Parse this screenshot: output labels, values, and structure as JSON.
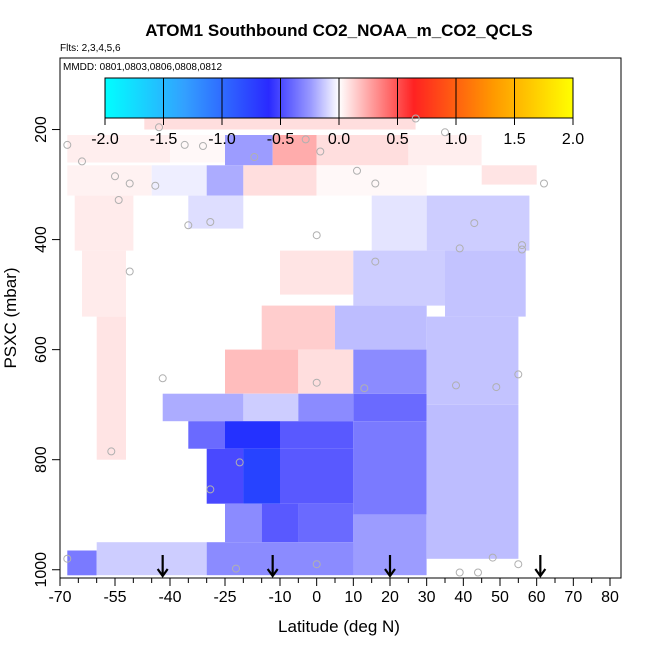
{
  "chart_data": {
    "type": "heatmap",
    "title": "ATOM1 Southbound CO2_NOAA_m_CO2_QCLS",
    "flights_note": "Flts: 2,3,4,5,6",
    "dates_note": "MMDD: 0801,0803,0806,0808,0812",
    "xlabel": "Latitude (deg N)",
    "ylabel": "PSXC (mbar)",
    "xlim": [
      -70,
      83
    ],
    "ylim": [
      1015,
      70
    ],
    "x_ticks": [
      -70,
      -55,
      -40,
      -25,
      -10,
      0,
      10,
      20,
      30,
      40,
      50,
      60,
      70,
      80
    ],
    "x_tick_labels": [
      "-70",
      "-55",
      "-40",
      "-25",
      "-10",
      "0",
      "10",
      "20",
      "30",
      "40",
      "50",
      "60",
      "70",
      "80"
    ],
    "x_minor_ticks": [
      -65,
      -60,
      -50,
      -45,
      -35,
      -30,
      -20,
      -15,
      -5,
      5,
      15,
      25,
      35,
      45,
      55,
      65,
      75
    ],
    "y_ticks": [
      200,
      400,
      600,
      800,
      1000
    ],
    "y_tick_labels": [
      "200",
      "400",
      "600",
      "800",
      "1000"
    ],
    "colorbar": {
      "ticks": [
        -2.0,
        -1.5,
        -1.0,
        -0.5,
        0.0,
        0.5,
        1.0,
        1.5,
        2.0
      ],
      "tick_labels": [
        "-2.0",
        "-1.5",
        "-1.0",
        "-0.5",
        "0.0",
        "0.5",
        "1.0",
        "1.5",
        "2.0"
      ],
      "range": [
        -2.0,
        2.0
      ],
      "colors": [
        "#00ffff",
        "#3399ff",
        "#2222ff",
        "#ffffff",
        "#ff2222",
        "#ff9900",
        "#ffff00"
      ]
    },
    "cells": [
      {
        "x": [
          -47,
          27
        ],
        "p": [
          160,
          200
        ],
        "v": 0.1
      },
      {
        "x": [
          -68,
          -40
        ],
        "p": [
          210,
          260
        ],
        "v": 0.05
      },
      {
        "x": [
          -40,
          -25
        ],
        "p": [
          210,
          260
        ],
        "v": 0.02
      },
      {
        "x": [
          -25,
          -12
        ],
        "p": [
          210,
          265
        ],
        "v": -0.3
      },
      {
        "x": [
          -12,
          0
        ],
        "p": [
          210,
          265
        ],
        "v": 0.25
      },
      {
        "x": [
          0,
          25
        ],
        "p": [
          210,
          265
        ],
        "v": 0.1
      },
      {
        "x": [
          25,
          45
        ],
        "p": [
          210,
          265
        ],
        "v": 0.05
      },
      {
        "x": [
          -68,
          -45
        ],
        "p": [
          265,
          320
        ],
        "v": 0.04
      },
      {
        "x": [
          -45,
          -30
        ],
        "p": [
          265,
          320
        ],
        "v": -0.05
      },
      {
        "x": [
          -30,
          -20
        ],
        "p": [
          265,
          320
        ],
        "v": -0.25
      },
      {
        "x": [
          -20,
          0
        ],
        "p": [
          265,
          320
        ],
        "v": 0.1
      },
      {
        "x": [
          0,
          30
        ],
        "p": [
          265,
          320
        ],
        "v": 0.02
      },
      {
        "x": [
          45,
          60
        ],
        "p": [
          265,
          300
        ],
        "v": 0.08
      },
      {
        "x": [
          -66,
          -50
        ],
        "p": [
          320,
          420
        ],
        "v": 0.06
      },
      {
        "x": [
          -35,
          -20
        ],
        "p": [
          320,
          380
        ],
        "v": -0.1
      },
      {
        "x": [
          15,
          30
        ],
        "p": [
          320,
          420
        ],
        "v": -0.08
      },
      {
        "x": [
          30,
          58
        ],
        "p": [
          320,
          420
        ],
        "v": -0.15
      },
      {
        "x": [
          -64,
          -52
        ],
        "p": [
          420,
          540
        ],
        "v": 0.06
      },
      {
        "x": [
          -10,
          10
        ],
        "p": [
          420,
          500
        ],
        "v": 0.08
      },
      {
        "x": [
          10,
          35
        ],
        "p": [
          420,
          520
        ],
        "v": -0.15
      },
      {
        "x": [
          35,
          57
        ],
        "p": [
          420,
          540
        ],
        "v": -0.18
      },
      {
        "x": [
          -60,
          -52
        ],
        "p": [
          540,
          800
        ],
        "v": 0.08
      },
      {
        "x": [
          -15,
          5
        ],
        "p": [
          520,
          600
        ],
        "v": 0.15
      },
      {
        "x": [
          5,
          30
        ],
        "p": [
          520,
          600
        ],
        "v": -0.2
      },
      {
        "x": [
          30,
          55
        ],
        "p": [
          540,
          700
        ],
        "v": -0.18
      },
      {
        "x": [
          -25,
          -5
        ],
        "p": [
          600,
          680
        ],
        "v": 0.2
      },
      {
        "x": [
          -5,
          10
        ],
        "p": [
          600,
          680
        ],
        "v": 0.1
      },
      {
        "x": [
          10,
          30
        ],
        "p": [
          600,
          680
        ],
        "v": -0.35
      },
      {
        "x": [
          30,
          55
        ],
        "p": [
          700,
          980
        ],
        "v": -0.2
      },
      {
        "x": [
          -42,
          -20
        ],
        "p": [
          680,
          730
        ],
        "v": -0.25
      },
      {
        "x": [
          -20,
          -5
        ],
        "p": [
          680,
          730
        ],
        "v": -0.15
      },
      {
        "x": [
          -5,
          10
        ],
        "p": [
          680,
          730
        ],
        "v": -0.35
      },
      {
        "x": [
          10,
          30
        ],
        "p": [
          680,
          730
        ],
        "v": -0.45
      },
      {
        "x": [
          -35,
          -25
        ],
        "p": [
          730,
          780
        ],
        "v": -0.45
      },
      {
        "x": [
          -25,
          -10
        ],
        "p": [
          730,
          780
        ],
        "v": -0.75
      },
      {
        "x": [
          -10,
          10
        ],
        "p": [
          730,
          780
        ],
        "v": -0.5
      },
      {
        "x": [
          10,
          30
        ],
        "p": [
          730,
          900
        ],
        "v": -0.4
      },
      {
        "x": [
          -30,
          -20
        ],
        "p": [
          780,
          880
        ],
        "v": -0.55
      },
      {
        "x": [
          -20,
          -10
        ],
        "p": [
          780,
          880
        ],
        "v": -0.85
      },
      {
        "x": [
          -10,
          10
        ],
        "p": [
          780,
          880
        ],
        "v": -0.5
      },
      {
        "x": [
          -25,
          -15
        ],
        "p": [
          880,
          950
        ],
        "v": -0.35
      },
      {
        "x": [
          -15,
          -5
        ],
        "p": [
          880,
          950
        ],
        "v": -0.5
      },
      {
        "x": [
          -5,
          10
        ],
        "p": [
          880,
          950
        ],
        "v": -0.45
      },
      {
        "x": [
          10,
          30
        ],
        "p": [
          900,
          1010
        ],
        "v": -0.3
      },
      {
        "x": [
          -60,
          -30
        ],
        "p": [
          950,
          1010
        ],
        "v": -0.15
      },
      {
        "x": [
          -30,
          10
        ],
        "p": [
          950,
          1010
        ],
        "v": -0.35
      },
      {
        "x": [
          -68,
          -60
        ],
        "p": [
          965,
          1010
        ],
        "v": -0.4
      }
    ],
    "sample_points": [
      {
        "lat": -68,
        "p": 228
      },
      {
        "lat": -43,
        "p": 196
      },
      {
        "lat": -64,
        "p": 258
      },
      {
        "lat": -36,
        "p": 228
      },
      {
        "lat": -31,
        "p": 230
      },
      {
        "lat": -17,
        "p": 250
      },
      {
        "lat": -3,
        "p": 218
      },
      {
        "lat": -55,
        "p": 285
      },
      {
        "lat": -51,
        "p": 298
      },
      {
        "lat": -44,
        "p": 302
      },
      {
        "lat": -54,
        "p": 328
      },
      {
        "lat": -29,
        "p": 368
      },
      {
        "lat": -35,
        "p": 374
      },
      {
        "lat": 0,
        "p": 392
      },
      {
        "lat": 1,
        "p": 240
      },
      {
        "lat": 11,
        "p": 275
      },
      {
        "lat": 16,
        "p": 298
      },
      {
        "lat": 27,
        "p": 180
      },
      {
        "lat": 35,
        "p": 205
      },
      {
        "lat": 39,
        "p": 416
      },
      {
        "lat": 43,
        "p": 370
      },
      {
        "lat": 56,
        "p": 410
      },
      {
        "lat": 62,
        "p": 298
      },
      {
        "lat": 56,
        "p": 418
      },
      {
        "lat": 16,
        "p": 440
      },
      {
        "lat": -51,
        "p": 458
      },
      {
        "lat": -42,
        "p": 652
      },
      {
        "lat": 0,
        "p": 660
      },
      {
        "lat": 13,
        "p": 670
      },
      {
        "lat": 38,
        "p": 665
      },
      {
        "lat": 49,
        "p": 668
      },
      {
        "lat": 55,
        "p": 645
      },
      {
        "lat": -56,
        "p": 785
      },
      {
        "lat": -21,
        "p": 805
      },
      {
        "lat": -29,
        "p": 854
      },
      {
        "lat": -68,
        "p": 980
      },
      {
        "lat": 0,
        "p": 990
      },
      {
        "lat": 39,
        "p": 1005
      },
      {
        "lat": 44,
        "p": 1005
      },
      {
        "lat": 48,
        "p": 978
      },
      {
        "lat": 55,
        "p": 990
      },
      {
        "lat": -22,
        "p": 998
      }
    ],
    "arrows_lat": [
      -42,
      -12,
      20,
      61
    ]
  }
}
